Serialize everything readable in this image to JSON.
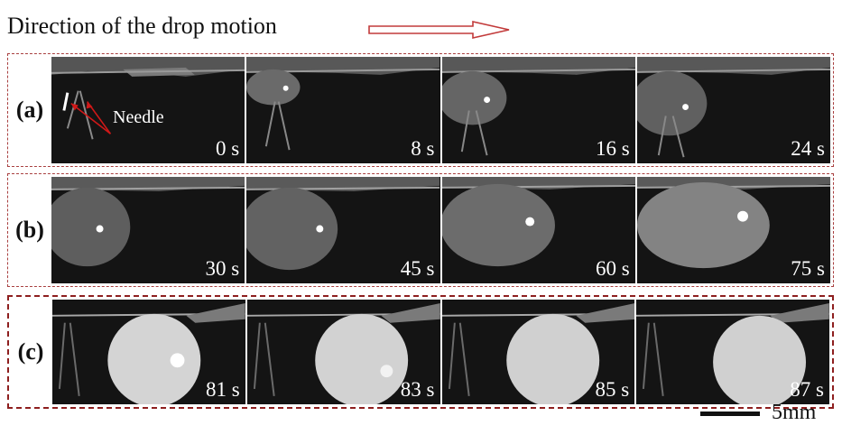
{
  "header": {
    "title": "Direction of the drop motion"
  },
  "groups": [
    {
      "label": "(a)",
      "frames": [
        {
          "time": "0 s",
          "drop": "none"
        },
        {
          "time": "8 s",
          "drop": "small"
        },
        {
          "time": "16 s",
          "drop": "small"
        },
        {
          "time": "24 s",
          "drop": "small"
        }
      ],
      "annotation": "Needle"
    },
    {
      "label": "(b)",
      "frames": [
        {
          "time": "30 s",
          "drop": "medium"
        },
        {
          "time": "45 s",
          "drop": "medium"
        },
        {
          "time": "60 s",
          "drop": "large-dim"
        },
        {
          "time": "75 s",
          "drop": "large"
        }
      ]
    },
    {
      "label": "(c)",
      "frames": [
        {
          "time": "81 s",
          "drop": "bright"
        },
        {
          "time": "83 s",
          "drop": "bright"
        },
        {
          "time": "85 s",
          "drop": "bright"
        },
        {
          "time": "87 s",
          "drop": "bright"
        }
      ]
    }
  ],
  "scale": {
    "label": "5mm"
  },
  "colors": {
    "frame_border_a": "#a94040",
    "frame_border_c": "#8e1f1f",
    "annotation_arrow": "#d01818",
    "direction_arrow": "#c23a3a"
  }
}
